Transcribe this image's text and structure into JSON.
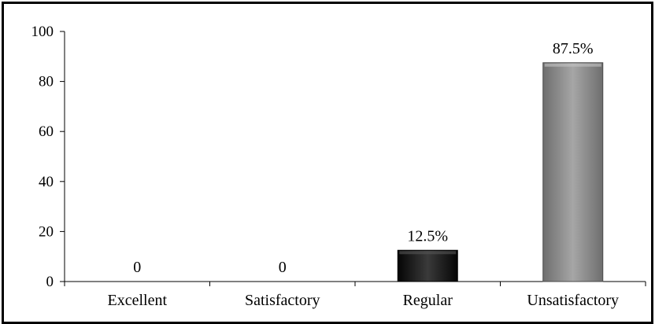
{
  "chart_data": {
    "type": "bar",
    "categories": [
      "Excellent",
      "Satisfactory",
      "Regular",
      "Unsatisfactory"
    ],
    "values": [
      0,
      0,
      12.5,
      87.5
    ],
    "data_labels": [
      "0",
      "0",
      "12.5%",
      "87.5%"
    ],
    "title": "",
    "xlabel": "",
    "ylabel": "",
    "ylim": [
      0,
      100
    ],
    "yticks": [
      0,
      20,
      40,
      60,
      80,
      100
    ],
    "grid": false,
    "legend": "none",
    "bar_colors": [
      "#1a1a1a",
      "#1a1a1a",
      "#1a1a1a",
      "#8c8c8c"
    ]
  }
}
